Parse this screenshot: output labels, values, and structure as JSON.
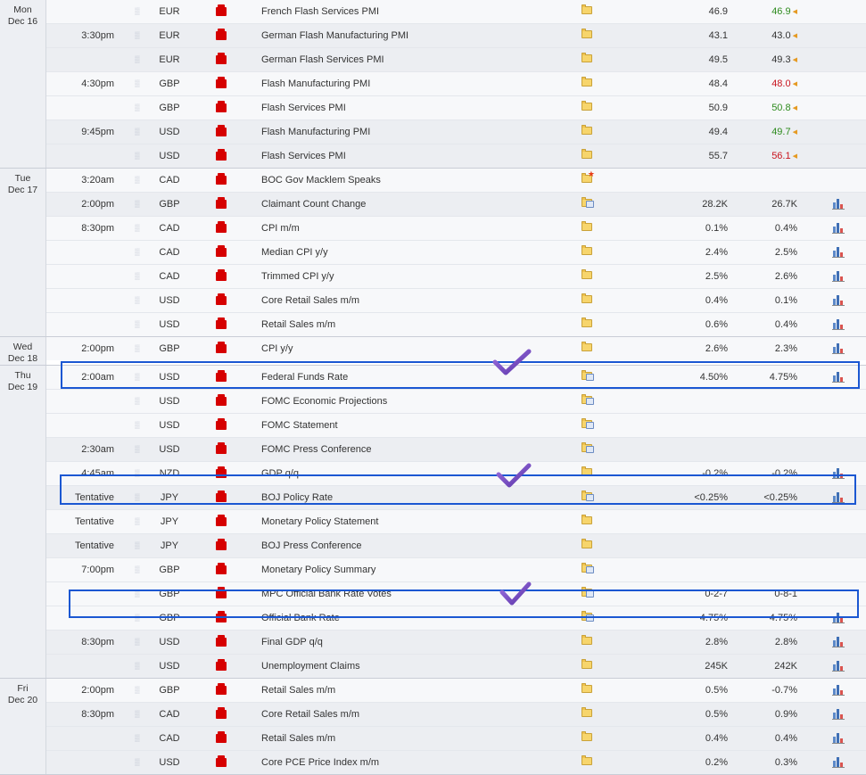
{
  "days": [
    {
      "date_line1": "Mon",
      "date_line2": "Dec 16",
      "events": [
        {
          "time": "",
          "currency": "EUR",
          "title": "French Flash Services PMI",
          "actual": "46.9",
          "previous": "46.9",
          "previous_status": "better",
          "revised": true
        },
        {
          "time": "3:30pm",
          "currency": "EUR",
          "title": "German Flash Manufacturing PMI",
          "actual": "43.1",
          "previous": "43.0",
          "previous_status": "neutral",
          "revised": true
        },
        {
          "time": "",
          "currency": "EUR",
          "title": "German Flash Services PMI",
          "actual": "49.5",
          "previous": "49.3",
          "previous_status": "neutral",
          "revised": true
        },
        {
          "time": "4:30pm",
          "currency": "GBP",
          "title": "Flash Manufacturing PMI",
          "actual": "48.4",
          "previous": "48.0",
          "previous_status": "worse",
          "revised": true
        },
        {
          "time": "",
          "currency": "GBP",
          "title": "Flash Services PMI",
          "actual": "50.9",
          "previous": "50.8",
          "previous_status": "better",
          "revised": true
        },
        {
          "time": "9:45pm",
          "currency": "USD",
          "title": "Flash Manufacturing PMI",
          "actual": "49.4",
          "previous": "49.7",
          "previous_status": "better",
          "revised": true
        },
        {
          "time": "",
          "currency": "USD",
          "title": "Flash Services PMI",
          "actual": "55.7",
          "previous": "56.1",
          "previous_status": "worse",
          "revised": true
        }
      ]
    },
    {
      "date_line1": "Tue",
      "date_line2": "Dec 17",
      "events": [
        {
          "time": "3:20am",
          "currency": "CAD",
          "title": "BOC Gov Macklem Speaks",
          "actual": "",
          "previous": "",
          "folder": "speech"
        },
        {
          "time": "2:00pm",
          "currency": "GBP",
          "title": "Claimant Count Change",
          "actual": "28.2K",
          "previous": "26.7K",
          "folder": "detail",
          "graph": true
        },
        {
          "time": "8:30pm",
          "currency": "CAD",
          "title": "CPI m/m",
          "actual": "0.1%",
          "previous": "0.4%",
          "graph": true
        },
        {
          "time": "",
          "currency": "CAD",
          "title": "Median CPI y/y",
          "actual": "2.4%",
          "previous": "2.5%",
          "graph": true
        },
        {
          "time": "",
          "currency": "CAD",
          "title": "Trimmed CPI y/y",
          "actual": "2.5%",
          "previous": "2.6%",
          "graph": true
        },
        {
          "time": "",
          "currency": "USD",
          "title": "Core Retail Sales m/m",
          "actual": "0.4%",
          "previous": "0.1%",
          "graph": true
        },
        {
          "time": "",
          "currency": "USD",
          "title": "Retail Sales m/m",
          "actual": "0.6%",
          "previous": "0.4%",
          "graph": true
        }
      ]
    },
    {
      "date_line1": "Wed",
      "date_line2": "Dec 18",
      "events": [
        {
          "time": "2:00pm",
          "currency": "GBP",
          "title": "CPI y/y",
          "actual": "2.6%",
          "previous": "2.3%",
          "graph": true
        }
      ]
    },
    {
      "date_line1": "Thu",
      "date_line2": "Dec 19",
      "events": [
        {
          "time": "2:00am",
          "currency": "USD",
          "title": "Federal Funds Rate",
          "actual": "4.50%",
          "previous": "4.75%",
          "folder": "detail",
          "graph": true
        },
        {
          "time": "",
          "currency": "USD",
          "title": "FOMC Economic Projections",
          "actual": "",
          "previous": "",
          "folder": "detail"
        },
        {
          "time": "",
          "currency": "USD",
          "title": "FOMC Statement",
          "actual": "",
          "previous": "",
          "folder": "detail"
        },
        {
          "time": "2:30am",
          "currency": "USD",
          "title": "FOMC Press Conference",
          "actual": "",
          "previous": "",
          "folder": "detail"
        },
        {
          "time": "4:45am",
          "currency": "NZD",
          "title": "GDP q/q",
          "actual": "-0.2%",
          "previous": "-0.2%",
          "graph": true
        },
        {
          "time": "Tentative",
          "currency": "JPY",
          "title": "BOJ Policy Rate",
          "actual": "<0.25%",
          "previous": "<0.25%",
          "folder": "detail",
          "graph": true
        },
        {
          "time": "Tentative",
          "currency": "JPY",
          "title": "Monetary Policy Statement",
          "actual": "",
          "previous": ""
        },
        {
          "time": "Tentative",
          "currency": "JPY",
          "title": "BOJ Press Conference",
          "actual": "",
          "previous": ""
        },
        {
          "time": "7:00pm",
          "currency": "GBP",
          "title": "Monetary Policy Summary",
          "actual": "",
          "previous": "",
          "folder": "detail"
        },
        {
          "time": "",
          "currency": "GBP",
          "title": "MPC Official Bank Rate Votes",
          "actual": "0-2-7",
          "previous": "0-8-1",
          "folder": "detail"
        },
        {
          "time": "",
          "currency": "GBP",
          "title": "Official Bank Rate",
          "actual": "4.75%",
          "previous": "4.75%",
          "folder": "detail",
          "graph": true
        },
        {
          "time": "8:30pm",
          "currency": "USD",
          "title": "Final GDP q/q",
          "actual": "2.8%",
          "previous": "2.8%",
          "graph": true
        },
        {
          "time": "",
          "currency": "USD",
          "title": "Unemployment Claims",
          "actual": "245K",
          "previous": "242K",
          "graph": true
        }
      ]
    },
    {
      "date_line1": "Fri",
      "date_line2": "Dec 20",
      "events": [
        {
          "time": "2:00pm",
          "currency": "GBP",
          "title": "Retail Sales m/m",
          "actual": "0.5%",
          "previous": "-0.7%",
          "graph": true
        },
        {
          "time": "8:30pm",
          "currency": "CAD",
          "title": "Core Retail Sales m/m",
          "actual": "0.5%",
          "previous": "0.9%",
          "graph": true
        },
        {
          "time": "",
          "currency": "CAD",
          "title": "Retail Sales m/m",
          "actual": "0.4%",
          "previous": "0.4%",
          "graph": true
        },
        {
          "time": "",
          "currency": "USD",
          "title": "Core PCE Price Index m/m",
          "actual": "0.2%",
          "previous": "0.3%",
          "graph": true
        }
      ]
    }
  ],
  "icons": {
    "impact": "high-impact-folder-icon",
    "lock": "sound-icon",
    "detail": "event-folder-icon",
    "graph": "bar-chart-icon"
  },
  "colors": {
    "better": "#2e8b1e",
    "worse": "#c8141e",
    "highlight_box": "#1b57d2",
    "annotation_check": "#7a4ec4",
    "impact_red": "#d60000"
  },
  "annotations": [
    {
      "type": "highlight",
      "event": "Federal Funds Rate"
    },
    {
      "type": "highlight",
      "event": "BOJ Policy Rate"
    },
    {
      "type": "highlight",
      "event": "Official Bank Rate"
    }
  ]
}
